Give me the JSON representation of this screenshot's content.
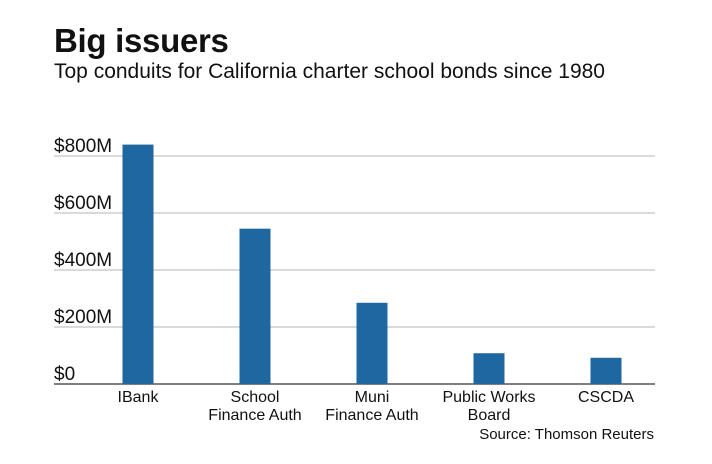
{
  "header": {
    "title": "Big issuers",
    "subtitle": "Top conduits for California charter school bonds since 1980"
  },
  "source": "Source: Thomson Reuters",
  "colors": {
    "bar": "#1f67a1",
    "grid": "#b5b5b5",
    "axis": "#555555"
  },
  "chart_data": {
    "type": "bar",
    "title": "Big issuers",
    "subtitle": "Top conduits for California charter school bonds since 1980",
    "categories": [
      [
        "IBank"
      ],
      [
        "School",
        "Finance Auth"
      ],
      [
        "Muni",
        "Finance Auth"
      ],
      [
        "Public Works",
        "Board"
      ],
      [
        "CSCDA"
      ]
    ],
    "values": [
      840,
      545,
      285,
      108,
      92
    ],
    "unit": "$M",
    "ylim": [
      0,
      800
    ],
    "yticks": [
      0,
      200,
      400,
      600,
      800
    ],
    "ytick_labels": [
      "$0",
      "$200M",
      "$400M",
      "$600M",
      "$800M"
    ],
    "grid": true,
    "legend": "none"
  }
}
